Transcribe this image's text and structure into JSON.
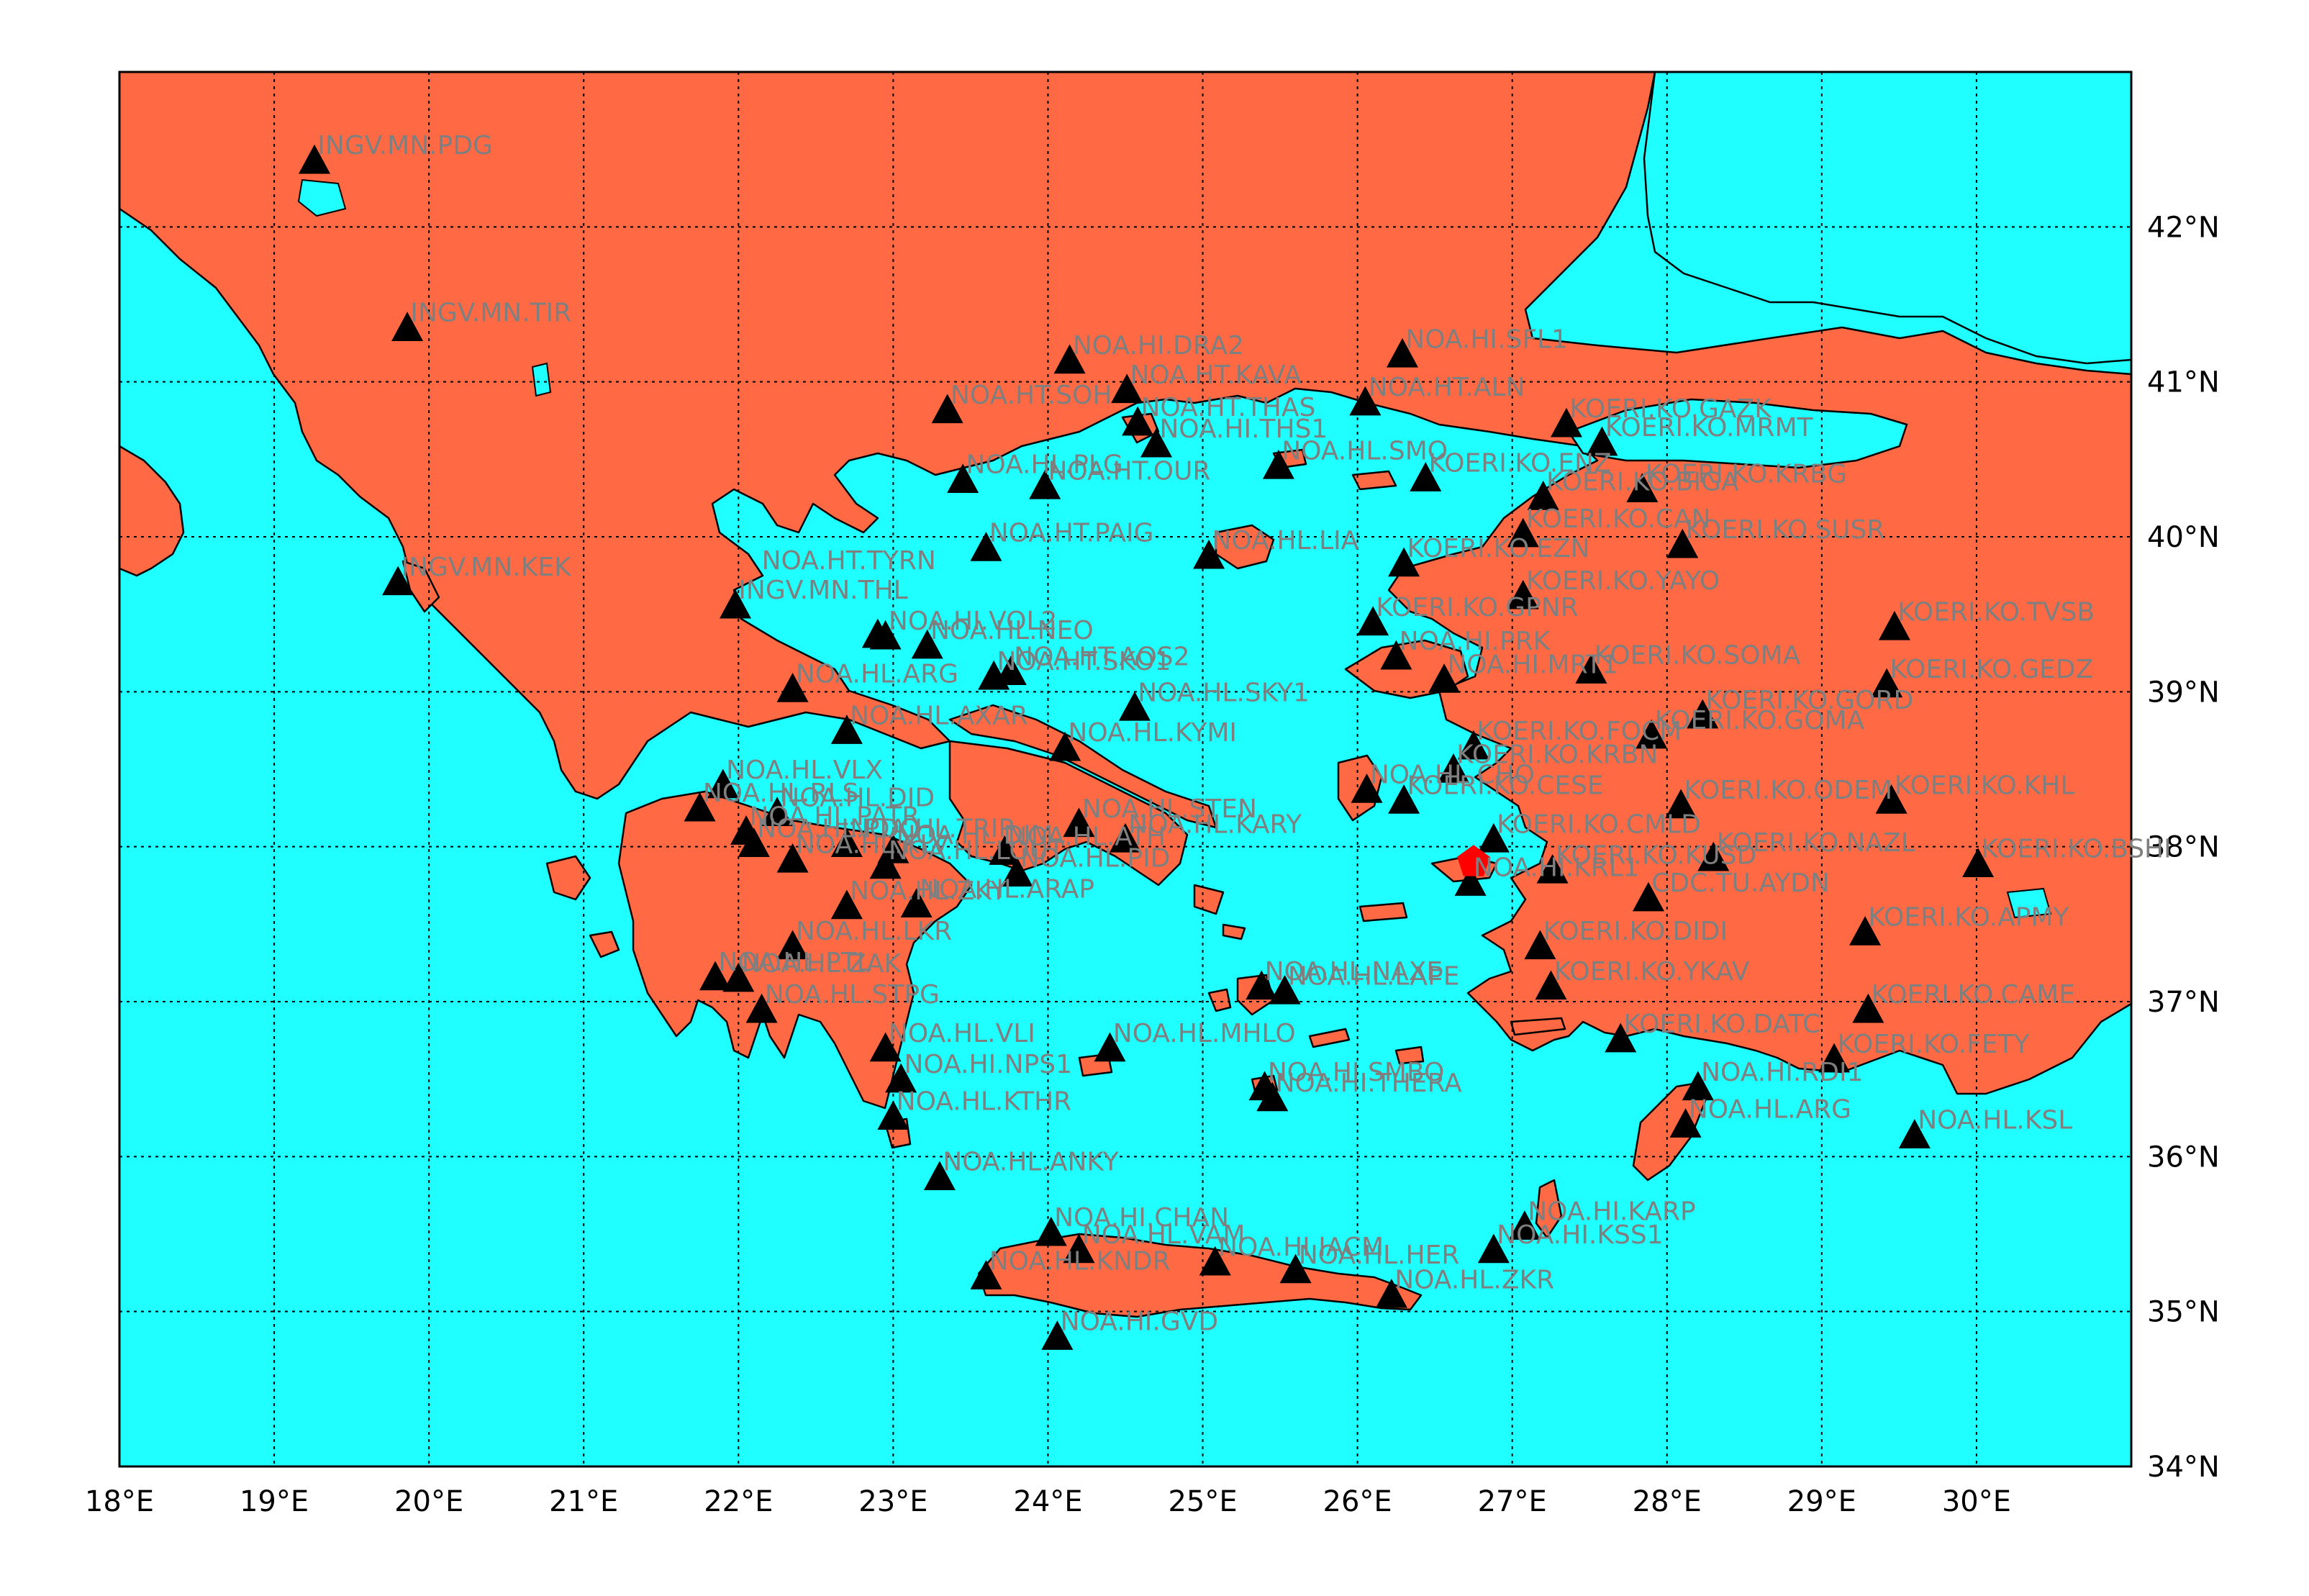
{
  "colors": {
    "sea": "#1fffff",
    "land": "#ff6a45",
    "station": "#000000",
    "event": "#ff0000",
    "label": "#7f7f7f"
  },
  "chart_data": {
    "type": "scatter",
    "xlim": [
      18,
      31
    ],
    "ylim": [
      34,
      43
    ],
    "grid": true,
    "x_ticks": [
      {
        "value": 18,
        "label": "18°E"
      },
      {
        "value": 19,
        "label": "19°E"
      },
      {
        "value": 20,
        "label": "20°E"
      },
      {
        "value": 21,
        "label": "21°E"
      },
      {
        "value": 22,
        "label": "22°E"
      },
      {
        "value": 23,
        "label": "23°E"
      },
      {
        "value": 24,
        "label": "24°E"
      },
      {
        "value": 25,
        "label": "25°E"
      },
      {
        "value": 26,
        "label": "26°E"
      },
      {
        "value": 27,
        "label": "27°E"
      },
      {
        "value": 28,
        "label": "28°E"
      },
      {
        "value": 29,
        "label": "29°E"
      },
      {
        "value": 30,
        "label": "30°E"
      }
    ],
    "y_ticks": [
      {
        "value": 34,
        "label": "34°N"
      },
      {
        "value": 35,
        "label": "35°N"
      },
      {
        "value": 36,
        "label": "36°N"
      },
      {
        "value": 37,
        "label": "37°N"
      },
      {
        "value": 38,
        "label": "38°N"
      },
      {
        "value": 39,
        "label": "39°N"
      },
      {
        "value": 40,
        "label": "40°N"
      },
      {
        "value": 41,
        "label": "41°N"
      },
      {
        "value": 42,
        "label": "42°N"
      }
    ],
    "event": {
      "lon": 26.75,
      "lat": 37.9
    },
    "stations": [
      {
        "name": "INGV.MN.PDG",
        "lon": 19.26,
        "lat": 42.43
      },
      {
        "name": "INGV.MN.TIR",
        "lon": 19.86,
        "lat": 41.35
      },
      {
        "name": "INGV.MN.KEK",
        "lon": 19.8,
        "lat": 39.71
      },
      {
        "name": "INGV.MN.THL",
        "lon": 21.98,
        "lat": 39.56
      },
      {
        "name": "NOA.HT.TYRN",
        "lon": 22.9,
        "lat": 39.37
      },
      {
        "name": "NOA.HI.VOL2",
        "lon": 22.95,
        "lat": 39.36
      },
      {
        "name": "NOA.HL.NEO",
        "lon": 23.22,
        "lat": 39.3
      },
      {
        "name": "NOA.HL.ARG",
        "lon": 22.35,
        "lat": 39.02
      },
      {
        "name": "NOA.HT.AOS2",
        "lon": 23.76,
        "lat": 39.13
      },
      {
        "name": "NOA.HT.SKO1",
        "lon": 23.65,
        "lat": 39.1
      },
      {
        "name": "NOA.HI.DRA2",
        "lon": 24.14,
        "lat": 41.14
      },
      {
        "name": "NOA.HT.KAVA",
        "lon": 24.51,
        "lat": 40.95
      },
      {
        "name": "NOA.HT.SOH",
        "lon": 23.35,
        "lat": 40.82
      },
      {
        "name": "NOA.HT.THAS",
        "lon": 24.58,
        "lat": 40.74
      },
      {
        "name": "NOA.HI.THS1",
        "lon": 24.7,
        "lat": 40.6
      },
      {
        "name": "NOA.HL.PLG",
        "lon": 23.45,
        "lat": 40.37
      },
      {
        "name": "NOA.HT.OUR",
        "lon": 23.98,
        "lat": 40.33
      },
      {
        "name": "NOA.HT.PAIG",
        "lon": 23.6,
        "lat": 39.93
      },
      {
        "name": "NOA.HL.LIA",
        "lon": 25.04,
        "lat": 39.88
      },
      {
        "name": "NOA.HL.SKY1",
        "lon": 24.56,
        "lat": 38.9
      },
      {
        "name": "NOA.HL.KYMI",
        "lon": 24.11,
        "lat": 38.64
      },
      {
        "name": "NOA.HI.SFL1",
        "lon": 26.29,
        "lat": 41.18
      },
      {
        "name": "NOA.HT.ALN",
        "lon": 26.05,
        "lat": 40.87
      },
      {
        "name": "NOA.HL.SMO",
        "lon": 25.49,
        "lat": 40.46
      },
      {
        "name": "KOERI.KO.GAZK",
        "lon": 27.35,
        "lat": 40.73
      },
      {
        "name": "KOERI.KO.ENZ",
        "lon": 26.44,
        "lat": 40.38
      },
      {
        "name": "KOERI.KO.MRMT",
        "lon": 27.58,
        "lat": 40.61
      },
      {
        "name": "KOERI.KO.BIGA",
        "lon": 27.2,
        "lat": 40.26
      },
      {
        "name": "KOERI.KO.KRBG",
        "lon": 27.84,
        "lat": 40.31
      },
      {
        "name": "KOERI.KO.CAN",
        "lon": 27.07,
        "lat": 40.02
      },
      {
        "name": "KOERI.KO.SUSR",
        "lon": 28.1,
        "lat": 39.95
      },
      {
        "name": "KOERI.KO.EZN",
        "lon": 26.3,
        "lat": 39.83
      },
      {
        "name": "KOERI.KO.YAYO",
        "lon": 27.07,
        "lat": 39.62
      },
      {
        "name": "KOERI.KO.GPNR",
        "lon": 26.1,
        "lat": 39.45
      },
      {
        "name": "NOA.HI.PRK",
        "lon": 26.25,
        "lat": 39.23
      },
      {
        "name": "NOA.HI.MRT1",
        "lon": 26.56,
        "lat": 39.08
      },
      {
        "name": "KOERI.KO.SOMA",
        "lon": 27.51,
        "lat": 39.14
      },
      {
        "name": "KOERI.KO.TVSB",
        "lon": 29.47,
        "lat": 39.42
      },
      {
        "name": "KOERI.KO.GORD",
        "lon": 28.23,
        "lat": 38.85
      },
      {
        "name": "KOERI.KO.GEDZ",
        "lon": 29.42,
        "lat": 39.05
      },
      {
        "name": "KOERI.KO.FOCM",
        "lon": 26.75,
        "lat": 38.65
      },
      {
        "name": "KOERI.KO.GOMA",
        "lon": 27.9,
        "lat": 38.72
      },
      {
        "name": "NOA.HL.CHO",
        "lon": 26.06,
        "lat": 38.37
      },
      {
        "name": "KOERI.KO.KRBN",
        "lon": 26.62,
        "lat": 38.5
      },
      {
        "name": "KOERI.KO.CESE",
        "lon": 26.3,
        "lat": 38.3
      },
      {
        "name": "KOERI.KO.ODEM",
        "lon": 28.09,
        "lat": 38.27
      },
      {
        "name": "KOERI.KO.KHL",
        "lon": 29.45,
        "lat": 38.3
      },
      {
        "name": "KOERI.KO.CMLD",
        "lon": 26.88,
        "lat": 38.05
      },
      {
        "name": "KOERI.KO.NAZL",
        "lon": 28.3,
        "lat": 37.93
      },
      {
        "name": "KOERI.KO.BSHI",
        "lon": 30.01,
        "lat": 37.89
      },
      {
        "name": "NOA.HI.KRL1",
        "lon": 26.73,
        "lat": 37.77
      },
      {
        "name": "KOERI.KO.KUSD",
        "lon": 27.26,
        "lat": 37.85
      },
      {
        "name": "CDC.TU.AYDN",
        "lon": 27.88,
        "lat": 37.67
      },
      {
        "name": "KOERI.KO.APMY",
        "lon": 29.28,
        "lat": 37.45
      },
      {
        "name": "KOERI.KO.DIDI",
        "lon": 27.18,
        "lat": 37.36
      },
      {
        "name": "KOERI.KO.YKAV",
        "lon": 27.25,
        "lat": 37.1
      },
      {
        "name": "KOERI.KO.CAME",
        "lon": 29.3,
        "lat": 36.95
      },
      {
        "name": "KOERI.KO.DATC",
        "lon": 27.7,
        "lat": 36.76
      },
      {
        "name": "KOERI.KO.FETY",
        "lon": 29.08,
        "lat": 36.63
      },
      {
        "name": "NOA.HI.RDI1",
        "lon": 28.2,
        "lat": 36.45
      },
      {
        "name": "NOA.HL.ARG",
        "lon": 28.12,
        "lat": 36.21
      },
      {
        "name": "NOA.HL.KSL",
        "lon": 29.6,
        "lat": 36.14
      },
      {
        "name": "NOA.HL.NAXE",
        "lon": 25.38,
        "lat": 37.1
      },
      {
        "name": "NOA.HL.LAPE",
        "lon": 25.53,
        "lat": 37.07
      },
      {
        "name": "NOA.HL.MHLO",
        "lon": 24.4,
        "lat": 36.7
      },
      {
        "name": "NOA.HI.SMBO",
        "lon": 25.4,
        "lat": 36.45
      },
      {
        "name": "NOA.HI.THERA",
        "lon": 25.45,
        "lat": 36.38
      },
      {
        "name": "NOA.HL.ANKY",
        "lon": 23.3,
        "lat": 35.87
      },
      {
        "name": "NOA.HI.CHAN",
        "lon": 24.02,
        "lat": 35.51
      },
      {
        "name": "NOA.HL.VAM",
        "lon": 24.2,
        "lat": 35.4
      },
      {
        "name": "NOA.HL.KNDR",
        "lon": 23.6,
        "lat": 35.23
      },
      {
        "name": "NOA.HI.IACM",
        "lon": 25.08,
        "lat": 35.32
      },
      {
        "name": "NOA.HL.HER",
        "lon": 25.6,
        "lat": 35.27
      },
      {
        "name": "NOA.HL.ZKR",
        "lon": 26.22,
        "lat": 35.11
      },
      {
        "name": "NOA.HI.GVD",
        "lon": 24.06,
        "lat": 34.84
      },
      {
        "name": "NOA.HI.KARP",
        "lon": 27.08,
        "lat": 35.55
      },
      {
        "name": "NOA.HI.KSS1",
        "lon": 26.88,
        "lat": 35.4
      },
      {
        "name": "NOA.HL.KTHR",
        "lon": 23.0,
        "lat": 36.26
      },
      {
        "name": "NOA.HI.NPS1",
        "lon": 23.05,
        "lat": 36.5
      },
      {
        "name": "NOA.HL.VLI",
        "lon": 22.95,
        "lat": 36.7
      },
      {
        "name": "NOA.HL.STPG",
        "lon": 22.15,
        "lat": 36.95
      },
      {
        "name": "NOA.HL.PTL",
        "lon": 21.85,
        "lat": 37.16
      },
      {
        "name": "NOA.HL.LKR",
        "lon": 22.35,
        "lat": 37.36
      },
      {
        "name": "NOA.HL.ZKY",
        "lon": 22.7,
        "lat": 37.62
      },
      {
        "name": "NOA.HL.ARAP",
        "lon": 23.15,
        "lat": 37.63
      },
      {
        "name": "NOA.HL.PID",
        "lon": 23.8,
        "lat": 37.83
      },
      {
        "name": "NOA.HL.KARY",
        "lon": 24.5,
        "lat": 38.05
      },
      {
        "name": "NOA.HL.ATH",
        "lon": 23.72,
        "lat": 37.97
      },
      {
        "name": "NOA.HL.STEN",
        "lon": 24.2,
        "lat": 38.15
      },
      {
        "name": "NOA.HL.AXAR",
        "lon": 22.7,
        "lat": 38.75
      },
      {
        "name": "NOA.HL.DID",
        "lon": 22.25,
        "lat": 38.22
      },
      {
        "name": "NOA.HL.RLS",
        "lon": 21.75,
        "lat": 38.25
      },
      {
        "name": "NOA.HL.PATR",
        "lon": 22.05,
        "lat": 38.1
      },
      {
        "name": "NOA.HL.KLV",
        "lon": 22.35,
        "lat": 37.92
      },
      {
        "name": "NOA.HL.TRIP",
        "lon": 22.7,
        "lat": 38.02
      },
      {
        "name": "NOA.HL.DIM",
        "lon": 23.0,
        "lat": 37.98
      },
      {
        "name": "NOA.HL.LOUT",
        "lon": 22.95,
        "lat": 37.88
      },
      {
        "name": "NOA.HL.VLX",
        "lon": 21.9,
        "lat": 38.4
      },
      {
        "name": "NOA.HL.PDO",
        "lon": 22.1,
        "lat": 38.02
      },
      {
        "name": "NOA.HL.ZAK",
        "lon": 22.0,
        "lat": 37.15
      }
    ],
    "shown_labels": [
      {
        "name": "INGV.MN.PDG",
        "lon": 19.28,
        "lat": 42.47
      },
      {
        "name": "INGV.MN.TIR",
        "lon": 19.88,
        "lat": 41.39
      },
      {
        "name": "INGV.MN.KEK",
        "lon": 19.82,
        "lat": 39.75
      },
      {
        "name": "INGV.MN.THL",
        "lon": 22.0,
        "lat": 39.6
      },
      {
        "name": "NOA.HT.TYRN",
        "lon": 22.15,
        "lat": 39.79
      },
      {
        "name": "NOA.HI.VOL2",
        "lon": 22.97,
        "lat": 39.4
      },
      {
        "name": "NOA.HL.NEO",
        "lon": 23.24,
        "lat": 39.34
      },
      {
        "name": "NOA.HL.ARG",
        "lon": 22.37,
        "lat": 39.06
      },
      {
        "name": "NOA.HT.AOS2",
        "lon": 23.78,
        "lat": 39.17
      },
      {
        "name": "NOA.HT.SKO1",
        "lon": 23.67,
        "lat": 39.14
      },
      {
        "name": "NOA.HI.DRA2",
        "lon": 24.16,
        "lat": 41.18
      },
      {
        "name": "NOA.HT.KAVA",
        "lon": 24.53,
        "lat": 40.99
      },
      {
        "name": "NOA.HT.SOH",
        "lon": 23.37,
        "lat": 40.86
      },
      {
        "name": "NOA.HT.THAS",
        "lon": 24.6,
        "lat": 40.78
      },
      {
        "name": "NOA.HI.THS1",
        "lon": 24.72,
        "lat": 40.64
      },
      {
        "name": "NOA.HL.PLG",
        "lon": 23.47,
        "lat": 40.41
      },
      {
        "name": "NOA.HT.OUR",
        "lon": 24.0,
        "lat": 40.37
      },
      {
        "name": "NOA.HT.PAIG",
        "lon": 23.62,
        "lat": 39.97
      },
      {
        "name": "NOA.HL.LIA",
        "lon": 25.06,
        "lat": 39.92
      },
      {
        "name": "NOA.HL.SKY1",
        "lon": 24.58,
        "lat": 38.94
      },
      {
        "name": "NOA.HL.KYMI",
        "lon": 24.13,
        "lat": 38.68
      },
      {
        "name": "NOA.HI.SFL1",
        "lon": 26.31,
        "lat": 41.22
      },
      {
        "name": "NOA.HT.ALN",
        "lon": 26.07,
        "lat": 40.91
      },
      {
        "name": "NOA.HL.SMO",
        "lon": 25.51,
        "lat": 40.5
      },
      {
        "name": "KOERI.KO.GAZK",
        "lon": 27.37,
        "lat": 40.77
      },
      {
        "name": "KOERI.KO.ENZ",
        "lon": 26.46,
        "lat": 40.42
      },
      {
        "name": "KOERI.KO.MRMT",
        "lon": 27.6,
        "lat": 40.65
      },
      {
        "name": "KOERI.KO.BIGA",
        "lon": 27.22,
        "lat": 40.3
      },
      {
        "name": "KOERI.KO.KRBG",
        "lon": 27.86,
        "lat": 40.35
      },
      {
        "name": "KOERI.KO.CAN",
        "lon": 27.09,
        "lat": 40.06
      },
      {
        "name": "KOERI.KO.SUSR",
        "lon": 28.12,
        "lat": 39.99
      },
      {
        "name": "KOERI.KO.EZN",
        "lon": 26.32,
        "lat": 39.87
      },
      {
        "name": "KOERI.KO.YAYO",
        "lon": 27.09,
        "lat": 39.66
      },
      {
        "name": "KOERI.KO.GPNR",
        "lon": 26.12,
        "lat": 39.49
      },
      {
        "name": "NOA.HI.PRK",
        "lon": 26.27,
        "lat": 39.27
      },
      {
        "name": "NOA.HI.MRT1",
        "lon": 26.58,
        "lat": 39.12
      },
      {
        "name": "KOERI.KO.SOMA",
        "lon": 27.53,
        "lat": 39.18
      },
      {
        "name": "KOERI.KO.TVSB",
        "lon": 29.49,
        "lat": 39.46
      },
      {
        "name": "KOERI.KO.GORD",
        "lon": 28.25,
        "lat": 38.89
      },
      {
        "name": "KOERI.KO.GEDZ",
        "lon": 29.44,
        "lat": 39.09
      },
      {
        "name": "KOERI.KO.FOCM",
        "lon": 26.77,
        "lat": 38.69
      },
      {
        "name": "KOERI.KO.GOMA",
        "lon": 27.92,
        "lat": 38.76
      },
      {
        "name": "NOA.HL.CHO",
        "lon": 26.08,
        "lat": 38.41
      },
      {
        "name": "KOERI.KO.KRBN",
        "lon": 26.64,
        "lat": 38.54
      },
      {
        "name": "KOERI.KO.CESE",
        "lon": 26.32,
        "lat": 38.34
      },
      {
        "name": "KOERI.KO.ODEM",
        "lon": 28.11,
        "lat": 38.31
      },
      {
        "name": "KOERI.KO.KHL",
        "lon": 29.47,
        "lat": 38.34
      },
      {
        "name": "KOERI.KO.CMLD",
        "lon": 26.9,
        "lat": 38.09
      },
      {
        "name": "KOERI.KO.NAZL",
        "lon": 28.32,
        "lat": 37.97
      },
      {
        "name": "KOERI.KO.BSHI",
        "lon": 30.03,
        "lat": 37.93
      },
      {
        "name": "NOA.HI.KRL1",
        "lon": 26.75,
        "lat": 37.81
      },
      {
        "name": "KOERI.KO.KUSD",
        "lon": 27.28,
        "lat": 37.89
      },
      {
        "name": "CDC.TU.AYDN",
        "lon": 27.9,
        "lat": 37.71
      },
      {
        "name": "KOERI.KO.APMY",
        "lon": 29.3,
        "lat": 37.49
      },
      {
        "name": "KOERI.KO.DIDI",
        "lon": 27.2,
        "lat": 37.4
      },
      {
        "name": "KOERI.KO.YKAV",
        "lon": 27.27,
        "lat": 37.14
      },
      {
        "name": "KOERI.KO.CAME",
        "lon": 29.32,
        "lat": 36.99
      },
      {
        "name": "KOERI.KO.DATC",
        "lon": 27.72,
        "lat": 36.8
      },
      {
        "name": "KOERI.KO.FETY",
        "lon": 29.1,
        "lat": 36.67
      },
      {
        "name": "NOA.HI.RDI1",
        "lon": 28.22,
        "lat": 36.49
      },
      {
        "name": "NOA.HL.ARG",
        "lon": 28.14,
        "lat": 36.25
      },
      {
        "name": "NOA.HL.KSL",
        "lon": 29.62,
        "lat": 36.18
      },
      {
        "name": "NOA.HL.NAXE",
        "lon": 25.4,
        "lat": 37.14
      },
      {
        "name": "NOA.HL.LAPE",
        "lon": 25.55,
        "lat": 37.11
      },
      {
        "name": "NOA.HL.MHLO",
        "lon": 24.42,
        "lat": 36.74
      },
      {
        "name": "NOA.HI.SMBO",
        "lon": 25.42,
        "lat": 36.49
      },
      {
        "name": "NOA.HI.THERA",
        "lon": 25.47,
        "lat": 36.42
      },
      {
        "name": "NOA.HL.ANKY",
        "lon": 23.32,
        "lat": 35.91
      },
      {
        "name": "NOA.HI.CHAN",
        "lon": 24.04,
        "lat": 35.55
      },
      {
        "name": "NOA.HL.VAM",
        "lon": 24.22,
        "lat": 35.44
      },
      {
        "name": "NOA.HL.KNDR",
        "lon": 23.62,
        "lat": 35.27
      },
      {
        "name": "NOA.HI.IACM",
        "lon": 25.1,
        "lat": 35.36
      },
      {
        "name": "NOA.HL.HER",
        "lon": 25.62,
        "lat": 35.31
      },
      {
        "name": "NOA.HL.ZKR",
        "lon": 26.24,
        "lat": 35.15
      },
      {
        "name": "NOA.HI.GVD",
        "lon": 24.08,
        "lat": 34.88
      },
      {
        "name": "NOA.HI.KARP",
        "lon": 27.1,
        "lat": 35.59
      },
      {
        "name": "NOA.HI.KSS1",
        "lon": 26.9,
        "lat": 35.44
      },
      {
        "name": "NOA.HL.KTHR",
        "lon": 23.02,
        "lat": 36.3
      },
      {
        "name": "NOA.HI.NPS1",
        "lon": 23.07,
        "lat": 36.54
      },
      {
        "name": "NOA.HL.VLI",
        "lon": 22.97,
        "lat": 36.74
      },
      {
        "name": "NOA.HL.STPG",
        "lon": 22.17,
        "lat": 36.99
      },
      {
        "name": "NOA.HL.PTL",
        "lon": 21.87,
        "lat": 37.2
      },
      {
        "name": "NOA.HL.LKR",
        "lon": 22.37,
        "lat": 37.4
      },
      {
        "name": "NOA.HL.ZKY",
        "lon": 22.72,
        "lat": 37.66
      },
      {
        "name": "NOA.HL.ARAP",
        "lon": 23.17,
        "lat": 37.67
      },
      {
        "name": "NOA.HL.PID",
        "lon": 23.82,
        "lat": 37.87
      },
      {
        "name": "NOA.HL.KARY",
        "lon": 24.52,
        "lat": 38.09
      },
      {
        "name": "NOA.HL.ATH",
        "lon": 23.74,
        "lat": 38.01
      },
      {
        "name": "NOA.HL.STEN",
        "lon": 24.22,
        "lat": 38.19
      },
      {
        "name": "NOA.HL.AXAR",
        "lon": 22.72,
        "lat": 38.79
      },
      {
        "name": "NOA.HL.DID",
        "lon": 22.27,
        "lat": 38.26
      },
      {
        "name": "NOA.HL.RLS",
        "lon": 21.77,
        "lat": 38.29
      },
      {
        "name": "NOA.HL.PATR",
        "lon": 22.07,
        "lat": 38.14
      },
      {
        "name": "NOA.HL.KLV",
        "lon": 22.37,
        "lat": 37.96
      },
      {
        "name": "NOA.HL.TRIP",
        "lon": 22.72,
        "lat": 38.06
      },
      {
        "name": "NOA.HL.DIM",
        "lon": 23.02,
        "lat": 38.02
      },
      {
        "name": "NOA.HL.LOUT",
        "lon": 22.97,
        "lat": 37.92
      },
      {
        "name": "NOA.HL.VLX",
        "lon": 21.92,
        "lat": 38.44
      },
      {
        "name": "NOA.HL.PDO",
        "lon": 22.12,
        "lat": 38.06
      },
      {
        "name": "NOA.HL.ZAK",
        "lon": 22.02,
        "lat": 37.19
      }
    ]
  }
}
